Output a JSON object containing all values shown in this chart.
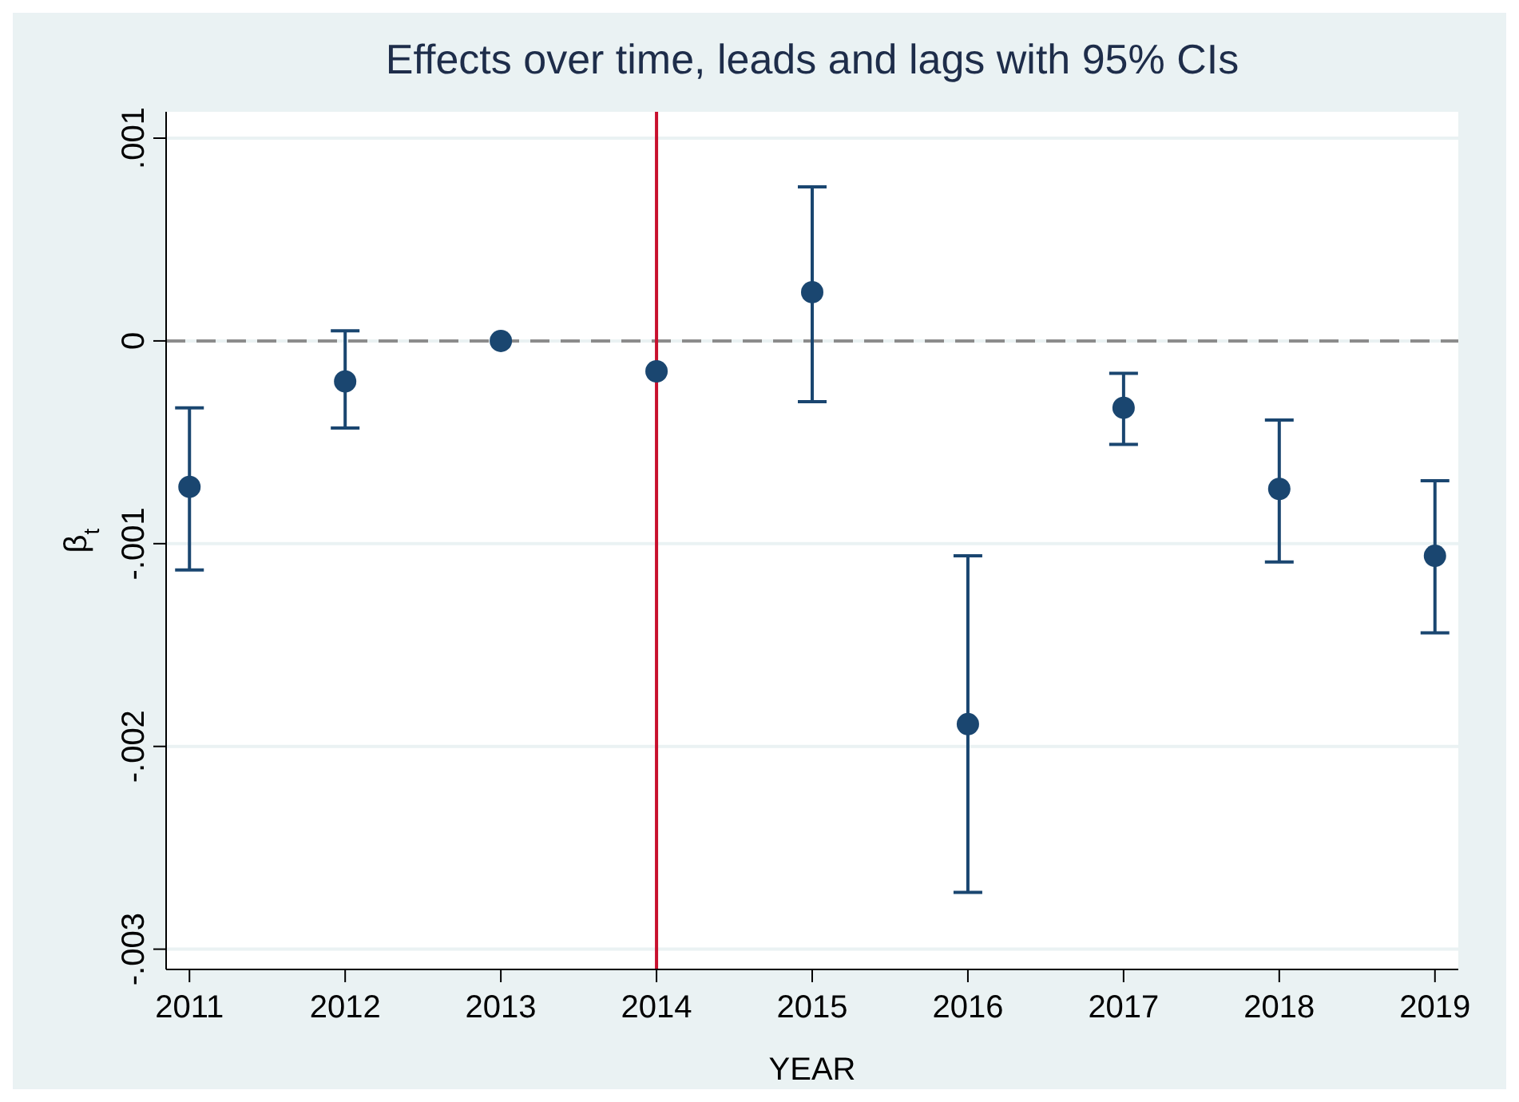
{
  "chart_data": {
    "type": "scatter",
    "title": "Effects over time, leads and lags with 95% CIs",
    "xlabel": "YEAR",
    "ylabel": "β$_{t}$",
    "x": [
      2011,
      2012,
      2013,
      2014,
      2015,
      2016,
      2017,
      2018,
      2019
    ],
    "series": [
      {
        "color": "#1a4670",
        "values": [
          -0.00072,
          -0.0002,
          0,
          -0.00015,
          0.00024,
          -0.00189,
          -0.00033,
          -0.00073,
          -0.00106
        ],
        "errors": [
          [
            -0.00113,
            -0.00033
          ],
          [
            -0.00043,
            5e-05
          ],
          null,
          null,
          [
            -0.0003,
            0.00076
          ],
          [
            -0.00272,
            -0.00106
          ],
          [
            -0.00051,
            -0.00016
          ],
          [
            -0.00109,
            -0.00039
          ],
          [
            -0.00144,
            -0.00069
          ]
        ]
      }
    ],
    "xlim": [
      2010.85,
      2019.15
    ],
    "xticks": [
      2011,
      2012,
      2013,
      2014,
      2015,
      2016,
      2017,
      2018,
      2019
    ],
    "ylim": [
      -0.0031,
      0.00113
    ],
    "yticks": [
      {
        "value": -0.003,
        "label": "-.003"
      },
      {
        "value": -0.002,
        "label": "-.002"
      },
      {
        "value": -0.001,
        "label": "-.001"
      },
      {
        "value": 0,
        "label": "0"
      },
      {
        "value": 0.001,
        "label": ".001"
      }
    ],
    "ref_lines": [
      {
        "axis": "y",
        "value": 0,
        "color": "#8c8c8c",
        "line_style": "dashed"
      },
      {
        "axis": "x",
        "value": 2014,
        "color": "#c8102e",
        "line_style": "solid"
      }
    ],
    "grid": "y",
    "marker": "circle"
  }
}
